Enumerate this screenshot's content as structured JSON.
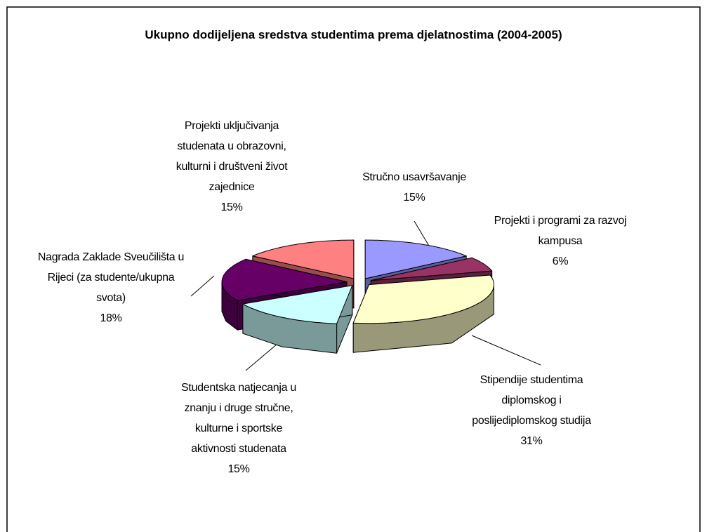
{
  "chart_data": {
    "type": "pie3d",
    "title": "Ukupno dodijeljena sredstva studentima prema djelatnostima (2004-2005)",
    "categories": [
      "Stručno usavršavanje",
      "Projekti i programi za razvoj kampusa",
      "Stipendije studentima diplomskog i poslijediplomskog studija",
      "Studentska natjecanja u znanju i druge stručne, kulturne i sportske aktivnosti studenata",
      "Nagrada Zaklade Sveučilišta u Rijeci (za studente/ukupna svota)",
      "Projekti uključivanja studenata u obrazovni, kulturni i društveni život zajednice"
    ],
    "values": [
      15,
      6,
      31,
      15,
      18,
      15
    ],
    "value_labels": [
      "15%",
      "6%",
      "31%",
      "15%",
      "18%",
      "15%"
    ],
    "colors": [
      "#9999ff",
      "#993366",
      "#ffffcc",
      "#ccffff",
      "#660066",
      "#ff8080"
    ]
  }
}
